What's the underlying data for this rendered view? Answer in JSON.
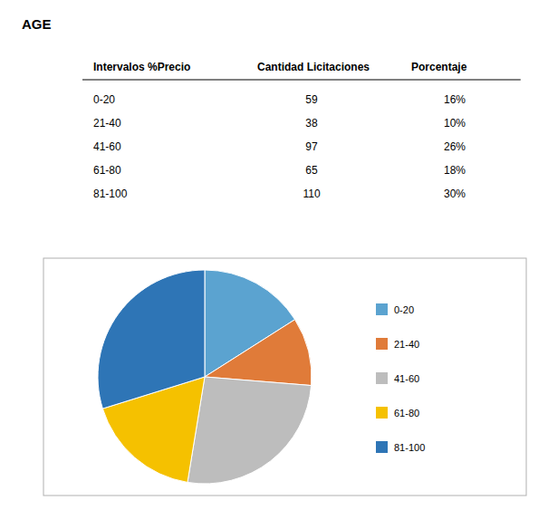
{
  "chart_data": {
    "type": "pie",
    "title": "AGE",
    "categories": [
      "0-20",
      "21-40",
      "41-60",
      "61-80",
      "81-100"
    ],
    "values": [
      59,
      38,
      97,
      65,
      110
    ],
    "colors": [
      "#5BA3D0",
      "#E07B39",
      "#BDBDBD",
      "#F5C100",
      "#2E75B6"
    ],
    "legend": "right",
    "table": {
      "headers": [
        "Intervalos %Precio",
        "Cantidad Licitaciones",
        "Porcentaje"
      ],
      "intervals": [
        "0-20",
        "21-40",
        "41-60",
        "61-80",
        "81-100"
      ],
      "quantities": [
        59,
        38,
        97,
        65,
        110
      ],
      "percentages": [
        {
          "value": 16,
          "label": "16%"
        },
        {
          "value": 10,
          "label": "10%"
        },
        {
          "value": 26,
          "label": "26%"
        },
        {
          "value": 18,
          "label": "18%"
        },
        {
          "value": 30,
          "label": "30%"
        }
      ]
    }
  }
}
